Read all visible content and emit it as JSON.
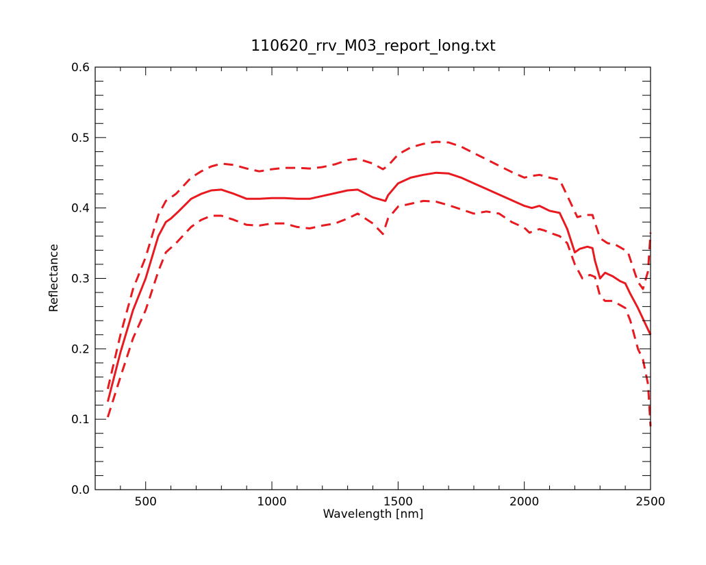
{
  "chart_data": {
    "type": "line",
    "title": "110620_rrv_M03_report_long.txt",
    "xlabel": "Wavelength [nm]",
    "ylabel": "Reflectance",
    "xlim": [
      300,
      2500
    ],
    "ylim": [
      0.0,
      0.6
    ],
    "x_ticks": [
      500,
      1000,
      1500,
      2000,
      2500
    ],
    "x_tick_labels": [
      "500",
      "1000",
      "1500",
      "2000",
      "2500"
    ],
    "y_ticks": [
      0.0,
      0.1,
      0.2,
      0.3,
      0.4,
      0.5,
      0.6
    ],
    "y_tick_labels": [
      "0.0",
      "0.1",
      "0.2",
      "0.3",
      "0.4",
      "0.5",
      "0.6"
    ],
    "grid": false,
    "series": [
      {
        "style": "solid",
        "color": "#e8191f",
        "x": [
          350,
          400,
          450,
          500,
          550,
          580,
          600,
          630,
          680,
          720,
          760,
          800,
          850,
          900,
          950,
          1000,
          1050,
          1100,
          1150,
          1200,
          1250,
          1300,
          1340,
          1400,
          1450,
          1460,
          1500,
          1550,
          1600,
          1650,
          1700,
          1750,
          1800,
          1850,
          1900,
          1950,
          2000,
          2030,
          2060,
          2100,
          2140,
          2170,
          2200,
          2220,
          2250,
          2270,
          2280,
          2300,
          2320,
          2350,
          2380,
          2400,
          2420,
          2450,
          2480,
          2500
        ],
        "values": [
          0.125,
          0.195,
          0.255,
          0.3,
          0.36,
          0.38,
          0.385,
          0.395,
          0.413,
          0.42,
          0.425,
          0.426,
          0.42,
          0.413,
          0.413,
          0.414,
          0.414,
          0.413,
          0.413,
          0.417,
          0.421,
          0.425,
          0.426,
          0.415,
          0.41,
          0.418,
          0.435,
          0.443,
          0.447,
          0.45,
          0.449,
          0.443,
          0.435,
          0.427,
          0.419,
          0.411,
          0.403,
          0.4,
          0.403,
          0.396,
          0.393,
          0.37,
          0.337,
          0.342,
          0.345,
          0.343,
          0.325,
          0.3,
          0.308,
          0.303,
          0.296,
          0.293,
          0.278,
          0.258,
          0.235,
          0.22
        ]
      },
      {
        "style": "dashed",
        "color": "#e8191f",
        "x": [
          350,
          400,
          450,
          500,
          550,
          580,
          620,
          680,
          720,
          760,
          800,
          850,
          900,
          950,
          1000,
          1050,
          1100,
          1150,
          1200,
          1250,
          1300,
          1340,
          1400,
          1440,
          1460,
          1500,
          1550,
          1600,
          1650,
          1700,
          1750,
          1800,
          1850,
          1900,
          1950,
          2000,
          2020,
          2060,
          2080,
          2100,
          2140,
          2180,
          2210,
          2240,
          2270,
          2300,
          2330,
          2360,
          2390,
          2410,
          2430,
          2450,
          2470,
          2490,
          2500
        ],
        "values": [
          0.143,
          0.22,
          0.285,
          0.33,
          0.39,
          0.41,
          0.42,
          0.443,
          0.452,
          0.459,
          0.463,
          0.461,
          0.456,
          0.452,
          0.455,
          0.457,
          0.457,
          0.456,
          0.458,
          0.462,
          0.468,
          0.47,
          0.463,
          0.455,
          0.46,
          0.476,
          0.486,
          0.491,
          0.494,
          0.493,
          0.487,
          0.478,
          0.469,
          0.46,
          0.451,
          0.443,
          0.445,
          0.447,
          0.445,
          0.443,
          0.44,
          0.41,
          0.387,
          0.39,
          0.39,
          0.357,
          0.35,
          0.348,
          0.342,
          0.338,
          0.316,
          0.295,
          0.285,
          0.31,
          0.365
        ]
      },
      {
        "style": "dashed",
        "color": "#e8191f",
        "x": [
          350,
          400,
          450,
          500,
          550,
          580,
          620,
          680,
          720,
          760,
          800,
          850,
          900,
          950,
          1000,
          1050,
          1100,
          1150,
          1200,
          1250,
          1300,
          1340,
          1400,
          1440,
          1460,
          1500,
          1550,
          1600,
          1650,
          1700,
          1750,
          1800,
          1850,
          1900,
          1950,
          2000,
          2020,
          2060,
          2080,
          2100,
          2140,
          2170,
          2200,
          2230,
          2260,
          2280,
          2300,
          2320,
          2350,
          2380,
          2400,
          2420,
          2450,
          2470,
          2490,
          2500
        ],
        "values": [
          0.103,
          0.16,
          0.215,
          0.255,
          0.31,
          0.337,
          0.35,
          0.373,
          0.383,
          0.389,
          0.389,
          0.383,
          0.376,
          0.375,
          0.378,
          0.378,
          0.373,
          0.371,
          0.375,
          0.378,
          0.385,
          0.392,
          0.378,
          0.363,
          0.385,
          0.402,
          0.406,
          0.41,
          0.409,
          0.404,
          0.398,
          0.392,
          0.395,
          0.392,
          0.38,
          0.372,
          0.365,
          0.37,
          0.368,
          0.365,
          0.36,
          0.35,
          0.32,
          0.3,
          0.305,
          0.302,
          0.275,
          0.268,
          0.268,
          0.262,
          0.258,
          0.24,
          0.2,
          0.185,
          0.15,
          0.09
        ]
      }
    ]
  }
}
